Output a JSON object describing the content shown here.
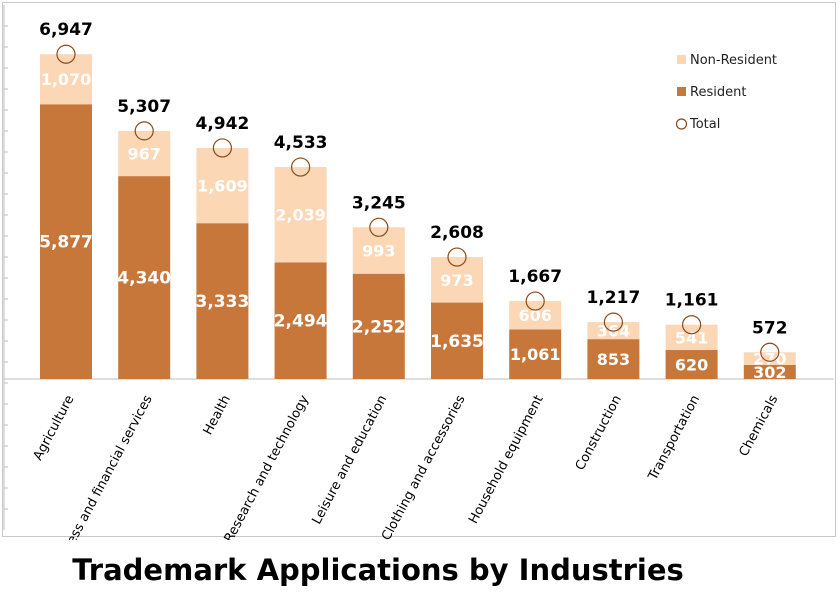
{
  "chart_data": {
    "type": "bar",
    "stacked": true,
    "title": "Trademark Applications by Industries",
    "categories": [
      "Agriculture",
      "Business and financial services",
      "Health",
      "Research and technology",
      "Leisure and education",
      "Clothing and accessories",
      "Household equipment",
      "Construction",
      "Transportation",
      "Chemicals"
    ],
    "series": [
      {
        "name": "Resident",
        "color": "#c8773a",
        "values": [
          5877,
          4340,
          3333,
          2494,
          2252,
          1635,
          1061,
          853,
          620,
          302
        ]
      },
      {
        "name": "Non-Resident",
        "color": "#fbd7b5",
        "values": [
          1070,
          967,
          1609,
          2039,
          993,
          973,
          606,
          364,
          541,
          270
        ]
      }
    ],
    "totals": {
      "name": "Total",
      "values": [
        6947,
        5307,
        4942,
        4533,
        3245,
        2608,
        1667,
        1217,
        1161,
        572
      ]
    },
    "legend": {
      "position": "top-right",
      "items": [
        "Non-Resident",
        "Resident",
        "Total"
      ]
    },
    "ylim": [
      0,
      8000
    ],
    "grid": false,
    "label_colors": {
      "on_bar": "#ffffff",
      "total": "#000000",
      "marker_stroke": "#8b4a1a"
    }
  }
}
